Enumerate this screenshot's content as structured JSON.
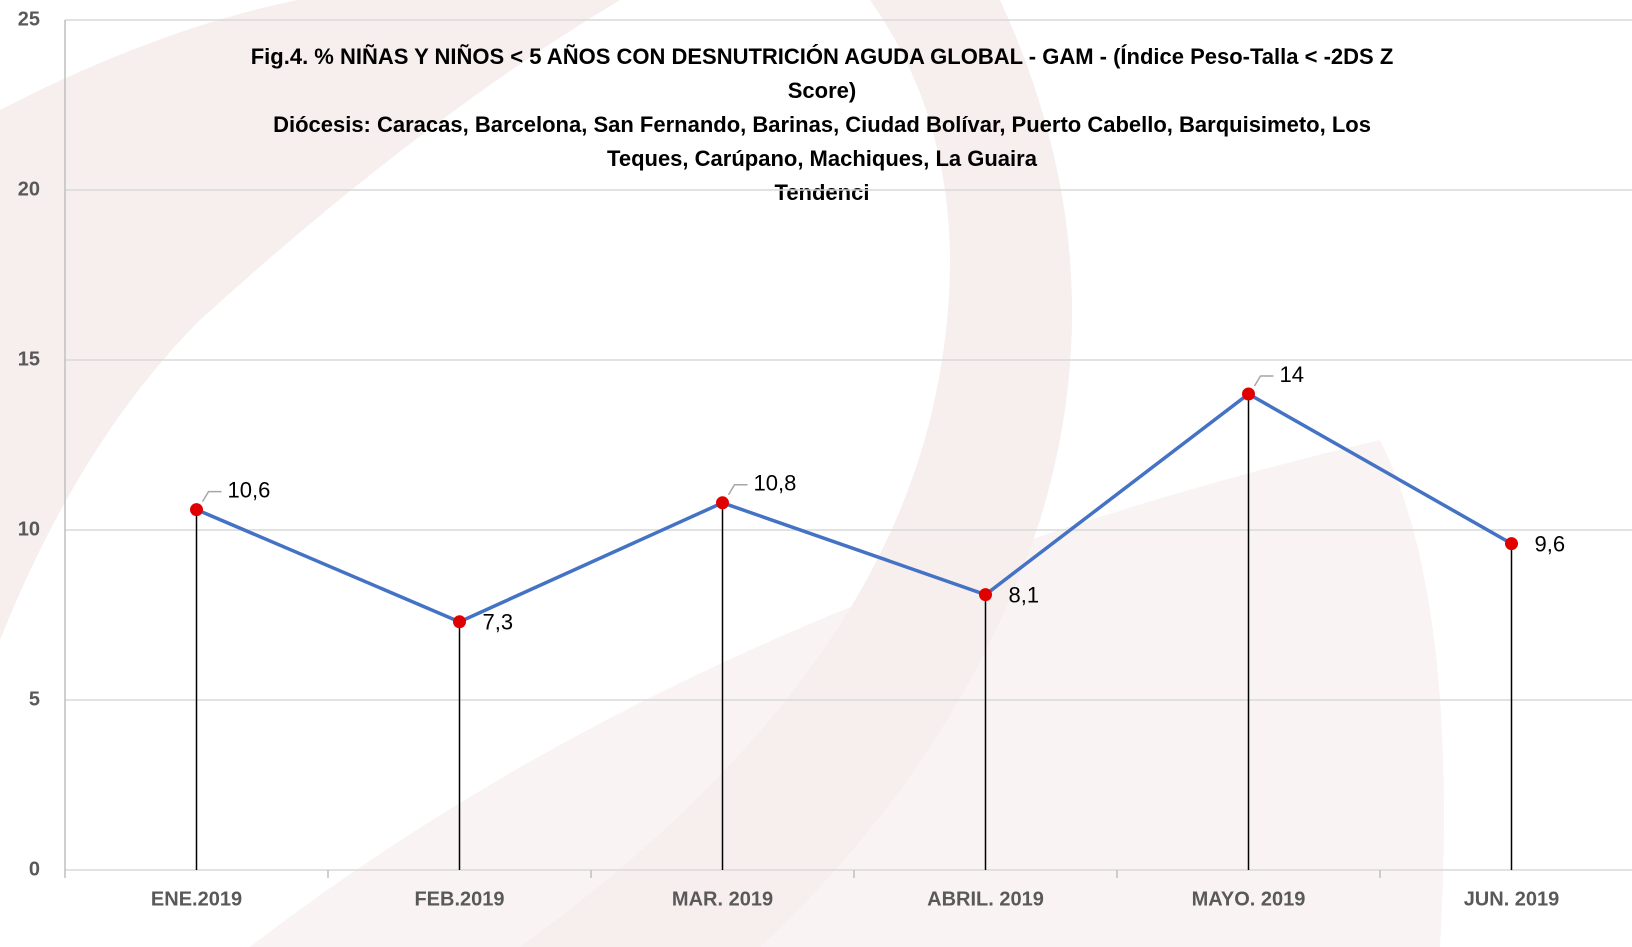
{
  "chart_data": {
    "type": "line",
    "title_lines": [
      "Fig.4. % NIÑAS Y NIÑOS < 5 AÑOS CON DESNUTRICIÓN AGUDA GLOBAL - GAM - (Índice Peso-Talla  < -2DS Z",
      "Score)",
      "Diócesis: Caracas, Barcelona, San Fernando, Barinas, Ciudad Bolívar, Puerto Cabello, Barquisimeto, Los",
      "Teques, Carúpano, Machiques, La Guaira",
      "Tendenci"
    ],
    "categories": [
      "ENE.2019",
      "FEB.2019",
      "MAR. 2019",
      "ABRIL. 2019",
      "MAYO. 2019",
      "JUN. 2019"
    ],
    "series": [
      {
        "color": "#4472c4",
        "marker_color": "#e00000",
        "values": [
          10.6,
          7.3,
          10.8,
          8.1,
          14,
          9.6
        ],
        "value_labels": [
          "10,6",
          "7,3",
          "10,8",
          "8,1",
          "14",
          "9,6"
        ]
      }
    ],
    "ylim": [
      0,
      25
    ],
    "yticks": [
      0,
      5,
      10,
      15,
      20,
      25
    ],
    "grid": true,
    "drop_lines": true
  }
}
